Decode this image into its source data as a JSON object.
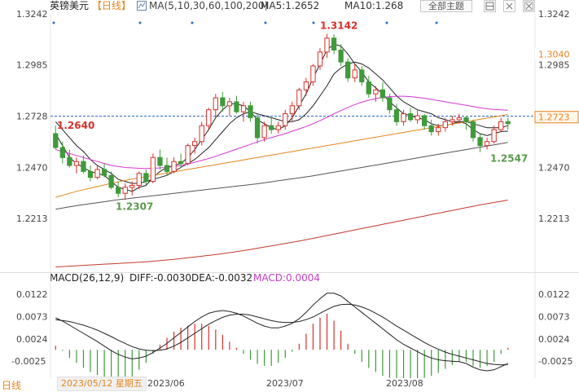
{
  "header": {
    "title": "英镑美元",
    "period": "【日线】",
    "ma_params": "MA(5,10,30,60,100,200)",
    "ma5": "MA5:1.2652",
    "ma10": "MA10:1.268",
    "theme_button": "全部主题",
    "ma_icon": "grid-icon",
    "tool_icons": [
      "layout-icon",
      "settings-icon",
      "close-icon"
    ]
  },
  "macd_header": {
    "params": "MACD(26,12,9)",
    "diff": "DIFF:-0.0030",
    "dea": "DEA:-0.0032",
    "macd": "MACD:0.0004"
  },
  "footer": {
    "period": "日线",
    "date_tag": "2023/05/12 星期五",
    "x_labels": [
      "2023/06",
      "2023/07",
      "2023/08"
    ]
  },
  "chart_data": [
    {
      "type": "candlestick",
      "y_ticks": [
        "1.3242",
        "1.2985",
        "1.2728",
        "1.2470",
        "1.2213"
      ],
      "ylim": [
        1.196,
        1.3242
      ],
      "annotations": [
        {
          "label": "1.3142",
          "value": 1.3142,
          "color": "#d9302a"
        },
        {
          "label": "1.2640",
          "value": 1.264,
          "color": "#d9302a"
        },
        {
          "label": "1.2307",
          "value": 1.2307,
          "color": "#5a9a4a"
        },
        {
          "label": "1.2547",
          "value": 1.2547,
          "color": "#5a9a4a"
        }
      ],
      "price_labels": [
        {
          "label": "1.3040",
          "value": 1.304,
          "color": "#e6851f"
        },
        {
          "label": "1.2723",
          "value": 1.2723,
          "color": "#e6851f"
        }
      ],
      "current_price": 1.2728,
      "colors": {
        "up": "#d9302a",
        "down": "#3f9a3a",
        "ma5": "#222222",
        "ma10": "#222222",
        "ma30": "#d637d6",
        "ma60": "#e6851f",
        "ma100": "#555555",
        "ma200": "#c23a2a",
        "ref": "#2a6bc8"
      },
      "candles": [
        [
          1.264,
          1.268,
          1.256,
          1.257
        ],
        [
          1.257,
          1.26,
          1.249,
          1.252
        ],
        [
          1.252,
          1.256,
          1.247,
          1.248
        ],
        [
          1.248,
          1.252,
          1.244,
          1.25
        ],
        [
          1.25,
          1.253,
          1.244,
          1.245
        ],
        [
          1.245,
          1.248,
          1.24,
          1.242
        ],
        [
          1.242,
          1.248,
          1.241,
          1.246
        ],
        [
          1.246,
          1.249,
          1.242,
          1.243
        ],
        [
          1.243,
          1.245,
          1.236,
          1.237
        ],
        [
          1.237,
          1.24,
          1.232,
          1.234
        ],
        [
          1.234,
          1.239,
          1.2307,
          1.237
        ],
        [
          1.237,
          1.24,
          1.233,
          1.238
        ],
        [
          1.238,
          1.245,
          1.236,
          1.244
        ],
        [
          1.244,
          1.246,
          1.238,
          1.24
        ],
        [
          1.24,
          1.254,
          1.239,
          1.252
        ],
        [
          1.252,
          1.256,
          1.246,
          1.248
        ],
        [
          1.248,
          1.252,
          1.243,
          1.245
        ],
        [
          1.245,
          1.252,
          1.244,
          1.25
        ],
        [
          1.25,
          1.254,
          1.247,
          1.249
        ],
        [
          1.249,
          1.259,
          1.248,
          1.258
        ],
        [
          1.258,
          1.262,
          1.254,
          1.26
        ],
        [
          1.26,
          1.27,
          1.258,
          1.268
        ],
        [
          1.268,
          1.277,
          1.266,
          1.276
        ],
        [
          1.276,
          1.284,
          1.272,
          1.282
        ],
        [
          1.282,
          1.285,
          1.275,
          1.278
        ],
        [
          1.278,
          1.282,
          1.273,
          1.28
        ],
        [
          1.28,
          1.283,
          1.274,
          1.275
        ],
        [
          1.275,
          1.28,
          1.27,
          1.278
        ],
        [
          1.278,
          1.28,
          1.27,
          1.272
        ],
        [
          1.272,
          1.274,
          1.259,
          1.262
        ],
        [
          1.262,
          1.27,
          1.26,
          1.268
        ],
        [
          1.268,
          1.272,
          1.264,
          1.266
        ],
        [
          1.266,
          1.27,
          1.264,
          1.268
        ],
        [
          1.268,
          1.276,
          1.266,
          1.274
        ],
        [
          1.274,
          1.28,
          1.27,
          1.278
        ],
        [
          1.278,
          1.287,
          1.276,
          1.286
        ],
        [
          1.286,
          1.292,
          1.283,
          1.29
        ],
        [
          1.29,
          1.299,
          1.288,
          1.298
        ],
        [
          1.298,
          1.307,
          1.296,
          1.305
        ],
        [
          1.305,
          1.3142,
          1.302,
          1.312
        ],
        [
          1.312,
          1.314,
          1.304,
          1.306
        ],
        [
          1.306,
          1.309,
          1.298,
          1.3
        ],
        [
          1.3,
          1.302,
          1.29,
          1.292
        ],
        [
          1.292,
          1.299,
          1.29,
          1.296
        ],
        [
          1.296,
          1.298,
          1.288,
          1.29
        ],
        [
          1.29,
          1.293,
          1.282,
          1.284
        ],
        [
          1.284,
          1.288,
          1.28,
          1.286
        ],
        [
          1.286,
          1.29,
          1.28,
          1.282
        ],
        [
          1.282,
          1.284,
          1.274,
          1.276
        ],
        [
          1.276,
          1.279,
          1.268,
          1.27
        ],
        [
          1.27,
          1.276,
          1.268,
          1.274
        ],
        [
          1.274,
          1.277,
          1.27,
          1.271
        ],
        [
          1.271,
          1.276,
          1.269,
          1.273
        ],
        [
          1.273,
          1.274,
          1.266,
          1.268
        ],
        [
          1.268,
          1.271,
          1.263,
          1.265
        ],
        [
          1.265,
          1.269,
          1.263,
          1.267
        ],
        [
          1.267,
          1.272,
          1.265,
          1.27
        ],
        [
          1.27,
          1.273,
          1.268,
          1.271
        ],
        [
          1.271,
          1.274,
          1.269,
          1.272
        ],
        [
          1.272,
          1.273,
          1.266,
          1.27
        ],
        [
          1.27,
          1.271,
          1.26,
          1.262
        ],
        [
          1.262,
          1.264,
          1.2547,
          1.258
        ],
        [
          1.258,
          1.262,
          1.256,
          1.26
        ],
        [
          1.26,
          1.268,
          1.259,
          1.266
        ],
        [
          1.266,
          1.272,
          1.265,
          1.27
        ],
        [
          1.27,
          1.272,
          1.266,
          1.269
        ]
      ],
      "ma_series": [
        {
          "key": "ma5",
          "values": [
            1.264,
            1.258,
            1.252,
            1.249,
            1.247,
            1.245,
            1.244,
            1.243,
            1.24,
            1.237,
            1.236,
            1.235,
            1.237,
            1.238,
            1.242,
            1.245,
            1.247,
            1.248,
            1.249,
            1.252,
            1.256,
            1.261,
            1.266,
            1.272,
            1.276,
            1.279,
            1.279,
            1.278,
            1.275,
            1.271,
            1.269,
            1.267,
            1.266,
            1.268,
            1.272,
            1.278,
            1.284,
            1.292,
            1.299,
            1.306,
            1.309,
            1.308,
            1.304,
            1.299,
            1.295,
            1.29,
            1.287,
            1.284,
            1.28,
            1.277,
            1.274,
            1.273,
            1.272,
            1.271,
            1.269,
            1.268,
            1.268,
            1.269,
            1.27,
            1.269,
            1.266,
            1.264,
            1.263,
            1.264,
            1.265,
            1.2652
          ]
        },
        {
          "key": "ma10",
          "values": [
            1.27,
            1.266,
            1.262,
            1.258,
            1.255,
            1.251,
            1.248,
            1.246,
            1.244,
            1.241,
            1.24,
            1.239,
            1.239,
            1.24,
            1.241,
            1.242,
            1.243,
            1.245,
            1.247,
            1.249,
            1.251,
            1.254,
            1.257,
            1.261,
            1.265,
            1.269,
            1.272,
            1.274,
            1.275,
            1.274,
            1.273,
            1.272,
            1.271,
            1.27,
            1.27,
            1.271,
            1.274,
            1.278,
            1.283,
            1.288,
            1.294,
            1.297,
            1.299,
            1.3,
            1.299,
            1.297,
            1.294,
            1.291,
            1.287,
            1.283,
            1.28,
            1.278,
            1.276,
            1.275,
            1.274,
            1.272,
            1.271,
            1.27,
            1.27,
            1.27,
            1.269,
            1.268,
            1.267,
            1.267,
            1.267,
            1.268
          ]
        },
        {
          "key": "ma30",
          "values": [
            1.256,
            1.255,
            1.254,
            1.253,
            1.252,
            1.251,
            1.25,
            1.249,
            1.248,
            1.2475,
            1.247,
            1.2468,
            1.2466,
            1.2465,
            1.2466,
            1.2468,
            1.247,
            1.2475,
            1.248,
            1.2488,
            1.2496,
            1.2505,
            1.2515,
            1.2526,
            1.2538,
            1.255,
            1.2562,
            1.2574,
            1.2586,
            1.2598,
            1.261,
            1.262,
            1.263,
            1.264,
            1.2652,
            1.2664,
            1.2676,
            1.269,
            1.2706,
            1.2722,
            1.274,
            1.2756,
            1.2772,
            1.2786,
            1.2798,
            1.2808,
            1.2816,
            1.2822,
            1.2826,
            1.2828,
            1.2828,
            1.2826,
            1.2822,
            1.2818,
            1.2812,
            1.2806,
            1.28,
            1.2794,
            1.2788,
            1.2782,
            1.2776,
            1.277,
            1.2765,
            1.2762,
            1.276,
            1.2758
          ]
        },
        {
          "key": "ma60",
          "values": [
            1.232,
            1.233,
            1.234,
            1.235,
            1.2358,
            1.2366,
            1.2374,
            1.2382,
            1.239,
            1.2398,
            1.2405,
            1.2412,
            1.2418,
            1.2424,
            1.243,
            1.2436,
            1.2442,
            1.2448,
            1.2454,
            1.246,
            1.2466,
            1.2472,
            1.2478,
            1.2484,
            1.249,
            1.2496,
            1.2502,
            1.2508,
            1.2514,
            1.252,
            1.2526,
            1.2532,
            1.2538,
            1.2544,
            1.255,
            1.2556,
            1.2562,
            1.2568,
            1.2574,
            1.258,
            1.2586,
            1.2592,
            1.2598,
            1.2604,
            1.261,
            1.2616,
            1.2622,
            1.2628,
            1.2634,
            1.264,
            1.2646,
            1.2652,
            1.2658,
            1.2664,
            1.267,
            1.2676,
            1.2682,
            1.2688,
            1.2694,
            1.27,
            1.2706,
            1.2712,
            1.2718,
            1.2724,
            1.273,
            1.2736
          ]
        },
        {
          "key": "ma100",
          "values": [
            1.226,
            1.2266,
            1.2272,
            1.2278,
            1.2283,
            1.2288,
            1.2293,
            1.2298,
            1.2303,
            1.2308,
            1.2312,
            1.2316,
            1.232,
            1.2324,
            1.2328,
            1.2332,
            1.2336,
            1.234,
            1.2344,
            1.2348,
            1.2352,
            1.2356,
            1.236,
            1.2364,
            1.2368,
            1.2372,
            1.2376,
            1.238,
            1.2384,
            1.2388,
            1.2393,
            1.2398,
            1.2403,
            1.2408,
            1.2413,
            1.2418,
            1.2423,
            1.2428,
            1.2434,
            1.244,
            1.2446,
            1.2452,
            1.2458,
            1.2464,
            1.247,
            1.2476,
            1.2482,
            1.2488,
            1.2494,
            1.25,
            1.2506,
            1.2512,
            1.2518,
            1.2524,
            1.253,
            1.2536,
            1.2542,
            1.2548,
            1.2554,
            1.256,
            1.2566,
            1.2572,
            1.2578,
            1.2584,
            1.259,
            1.2596
          ]
        },
        {
          "key": "ma200",
          "values": [
            1.197,
            1.1972,
            1.1974,
            1.1976,
            1.1978,
            1.198,
            1.1982,
            1.1984,
            1.1986,
            1.1988,
            1.199,
            1.1992,
            1.1994,
            1.1996,
            1.1999,
            1.2002,
            1.2005,
            1.2008,
            1.2012,
            1.2016,
            1.202,
            1.2024,
            1.2028,
            1.2032,
            1.2037,
            1.2042,
            1.2047,
            1.2052,
            1.2058,
            1.2064,
            1.207,
            1.2076,
            1.2082,
            1.2088,
            1.2094,
            1.21,
            1.2107,
            1.2114,
            1.2121,
            1.2128,
            1.2135,
            1.2142,
            1.2149,
            1.2156,
            1.2163,
            1.217,
            1.2177,
            1.2184,
            1.2191,
            1.2198,
            1.2205,
            1.2212,
            1.2219,
            1.2226,
            1.2233,
            1.224,
            1.2247,
            1.2254,
            1.2261,
            1.2268,
            1.2275,
            1.2282,
            1.2288,
            1.2294,
            1.23,
            1.2306
          ]
        }
      ]
    },
    {
      "type": "macd",
      "y_ticks": [
        "0.0122",
        "0.0073",
        "0.0024",
        "-0.0025"
      ],
      "ylim": [
        -0.0055,
        0.0145
      ],
      "colors": {
        "pos": "#d9302a",
        "neg": "#3f9a3a",
        "diff": "#222222",
        "dea": "#222222"
      },
      "diff": [
        0.007,
        0.0063,
        0.0054,
        0.0045,
        0.0036,
        0.0027,
        0.0018,
        0.0008,
        -0.0002,
        -0.001,
        -0.0016,
        -0.002,
        -0.0018,
        -0.0014,
        -0.0006,
        0.0004,
        0.0014,
        0.0026,
        0.0038,
        0.005,
        0.0062,
        0.0072,
        0.008,
        0.0084,
        0.0086,
        0.0084,
        0.008,
        0.0074,
        0.0066,
        0.0058,
        0.0052,
        0.0048,
        0.0048,
        0.0052,
        0.0058,
        0.0068,
        0.0082,
        0.0098,
        0.0112,
        0.0124,
        0.0124,
        0.0118,
        0.0106,
        0.0094,
        0.0082,
        0.007,
        0.0058,
        0.0046,
        0.0034,
        0.0022,
        0.0012,
        0.0004,
        -0.0004,
        -0.0012,
        -0.0018,
        -0.0022,
        -0.0024,
        -0.0025,
        -0.0026,
        -0.003,
        -0.0038,
        -0.0044,
        -0.0046,
        -0.0044,
        -0.0037,
        -0.003
      ],
      "dea": [
        0.0066,
        0.0064,
        0.0062,
        0.0058,
        0.0054,
        0.0049,
        0.0043,
        0.0036,
        0.0029,
        0.0021,
        0.0014,
        0.0007,
        0.0002,
        -0.0001,
        -0.0002,
        -0.0001,
        0.0002,
        0.0008,
        0.0016,
        0.0026,
        0.0036,
        0.0046,
        0.0056,
        0.0064,
        0.0071,
        0.0076,
        0.0078,
        0.0078,
        0.0076,
        0.0072,
        0.0068,
        0.0064,
        0.0061,
        0.006,
        0.006,
        0.0062,
        0.0066,
        0.0072,
        0.008,
        0.0088,
        0.0095,
        0.0099,
        0.01,
        0.0098,
        0.0094,
        0.0088,
        0.008,
        0.0072,
        0.0062,
        0.0052,
        0.0043,
        0.0034,
        0.0025,
        0.0016,
        0.0008,
        0.0001,
        -0.0005,
        -0.001,
        -0.0014,
        -0.0018,
        -0.0022,
        -0.0026,
        -0.003,
        -0.0032,
        -0.0033,
        -0.0032
      ]
    }
  ]
}
